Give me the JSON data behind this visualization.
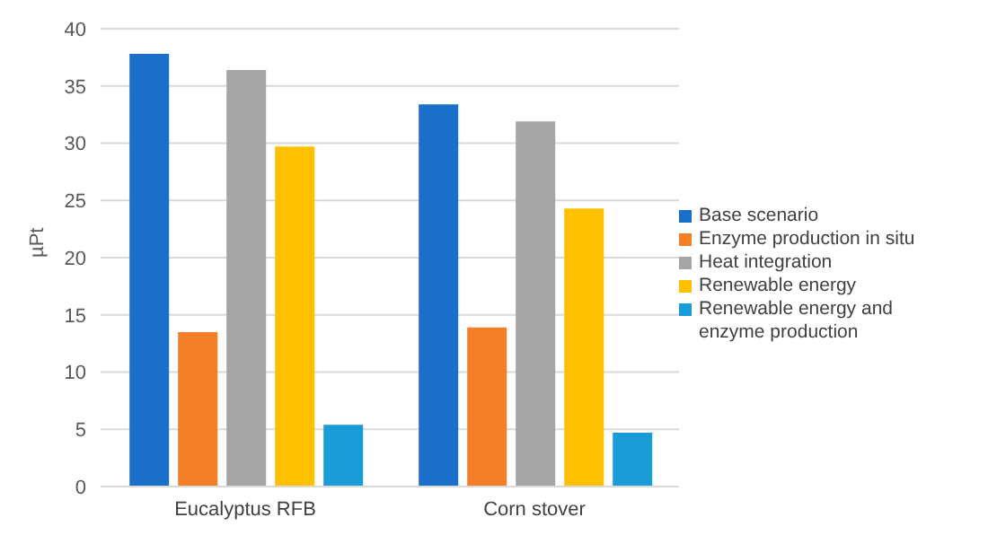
{
  "chart_data": {
    "type": "bar",
    "ylabel": "µPt",
    "categories": [
      "Eucalyptus RFB",
      "Corn stover"
    ],
    "series": [
      {
        "name": "Base scenario",
        "color": "#1a70c8",
        "values": [
          37.8,
          33.4
        ]
      },
      {
        "name": "Enzyme production in situ",
        "color": "#f57f29",
        "values": [
          13.5,
          13.9
        ]
      },
      {
        "name": "Heat integration",
        "color": "#a5a5a5",
        "values": [
          36.4,
          31.9
        ]
      },
      {
        "name": "Renewable energy",
        "color": "#ffc000",
        "values": [
          29.7,
          24.3
        ]
      },
      {
        "name": "Renewable energy and enzyme production",
        "color": "#1a9cd8",
        "values": [
          5.4,
          4.7
        ]
      }
    ],
    "ylim": [
      0,
      40
    ],
    "yticks": [
      0,
      5,
      10,
      15,
      20,
      25,
      30,
      35,
      40
    ],
    "grid": "y",
    "legend": "right"
  }
}
